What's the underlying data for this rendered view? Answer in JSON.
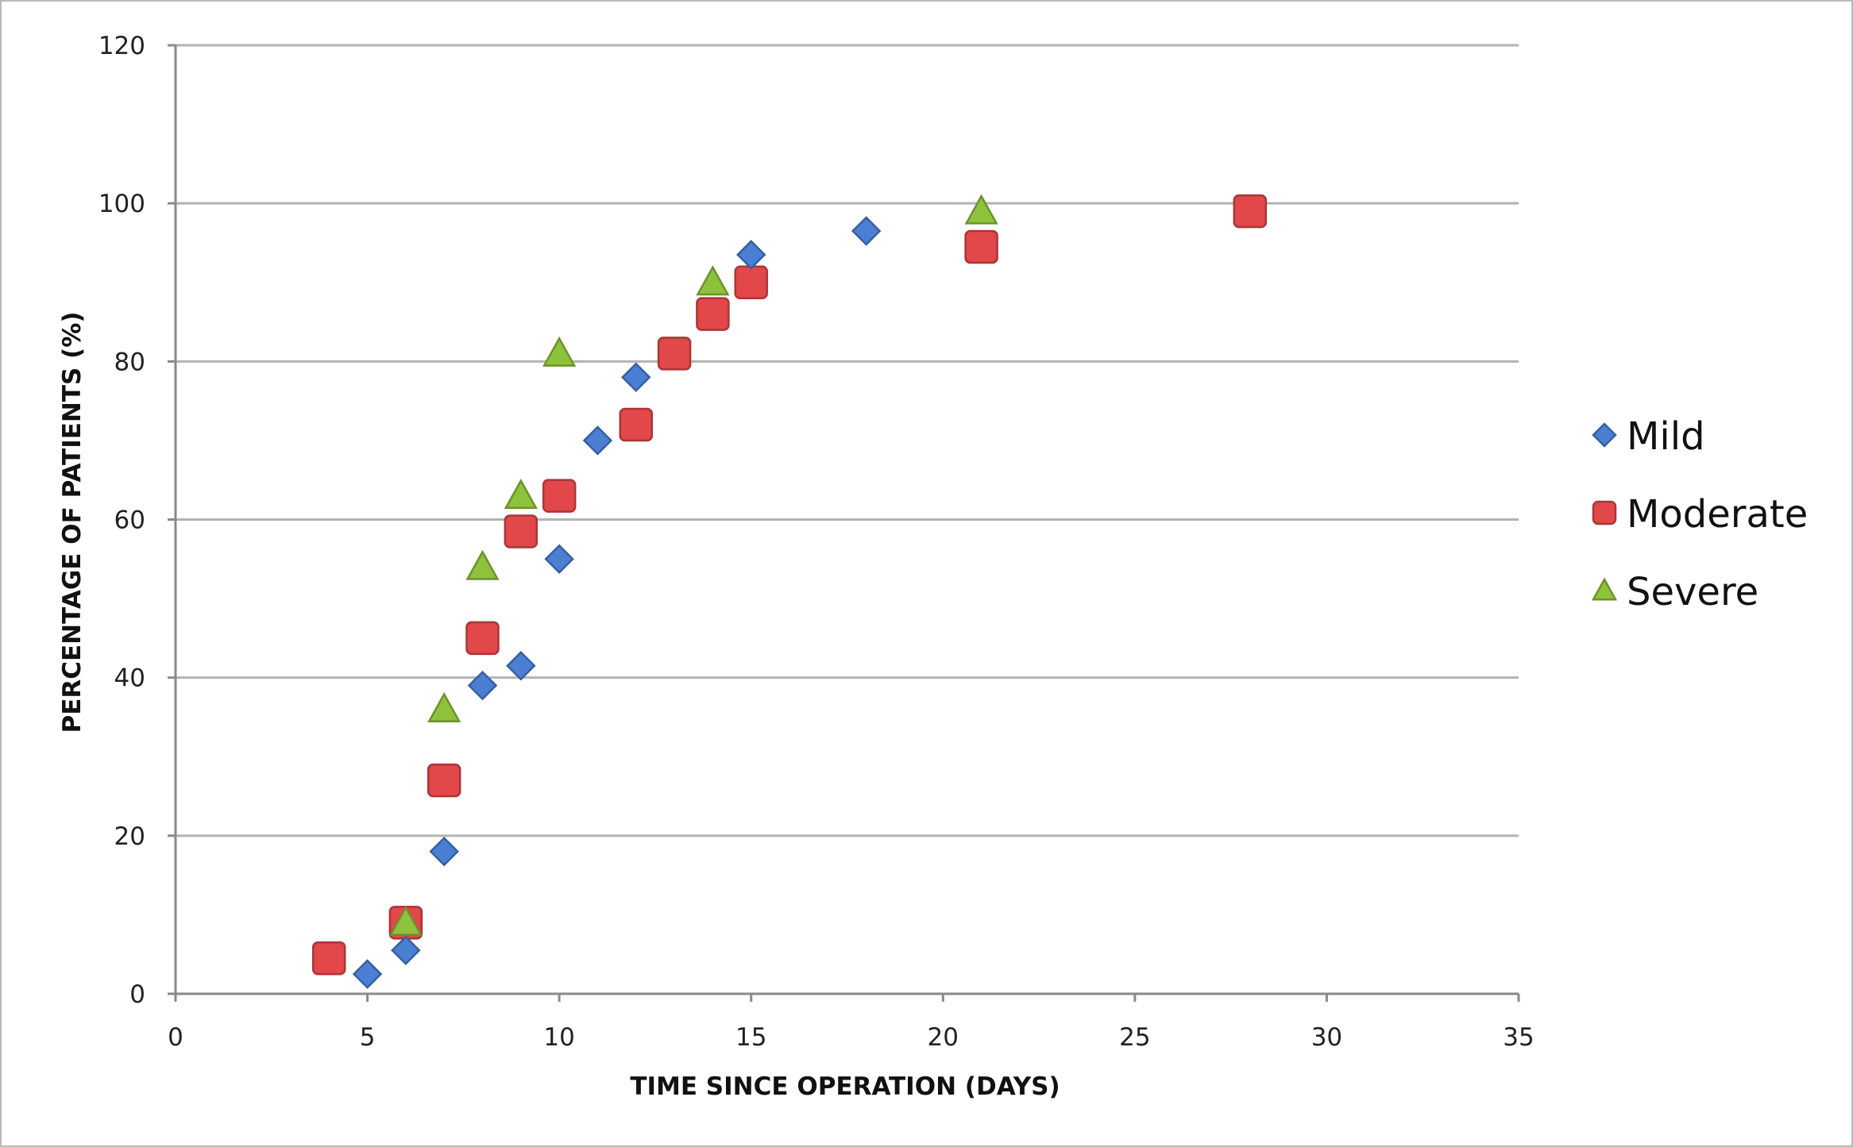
{
  "chart_data": {
    "type": "scatter",
    "title": "",
    "xlabel": "TIME SINCE OPERATION (DAYS)",
    "ylabel": "PERCENTAGE OF PATIENTS  (%)",
    "xlim": [
      0,
      35
    ],
    "ylim": [
      0,
      120
    ],
    "xticks": [
      "0",
      "5",
      "10",
      "15",
      "20",
      "25",
      "30",
      "35"
    ],
    "yticks": [
      "0",
      "20",
      "40",
      "60",
      "80",
      "100",
      "120"
    ],
    "grid": "horizontal",
    "legend_position": "right",
    "series": [
      {
        "name": "Mild",
        "marker": "diamond",
        "color": "#4a7fd4",
        "points": [
          {
            "x": 5,
            "y": 2.5
          },
          {
            "x": 6,
            "y": 5.5
          },
          {
            "x": 7,
            "y": 18
          },
          {
            "x": 8,
            "y": 39
          },
          {
            "x": 9,
            "y": 41.5
          },
          {
            "x": 10,
            "y": 55
          },
          {
            "x": 11,
            "y": 70
          },
          {
            "x": 12,
            "y": 78
          },
          {
            "x": 15,
            "y": 93.5
          },
          {
            "x": 18,
            "y": 96.5
          }
        ]
      },
      {
        "name": "Moderate",
        "marker": "square",
        "color": "#e2474a",
        "points": [
          {
            "x": 4,
            "y": 4.5
          },
          {
            "x": 6,
            "y": 9
          },
          {
            "x": 7,
            "y": 27
          },
          {
            "x": 8,
            "y": 45
          },
          {
            "x": 9,
            "y": 58.5
          },
          {
            "x": 10,
            "y": 63
          },
          {
            "x": 12,
            "y": 72
          },
          {
            "x": 13,
            "y": 81
          },
          {
            "x": 14,
            "y": 86
          },
          {
            "x": 15,
            "y": 90
          },
          {
            "x": 21,
            "y": 94.5
          },
          {
            "x": 28,
            "y": 99
          }
        ]
      },
      {
        "name": "Severe",
        "marker": "triangle",
        "color": "#8fc23c",
        "points": [
          {
            "x": 6,
            "y": 9
          },
          {
            "x": 7,
            "y": 36
          },
          {
            "x": 8,
            "y": 54
          },
          {
            "x": 9,
            "y": 63
          },
          {
            "x": 10,
            "y": 81
          },
          {
            "x": 14,
            "y": 90
          },
          {
            "x": 21,
            "y": 99
          }
        ]
      }
    ]
  }
}
